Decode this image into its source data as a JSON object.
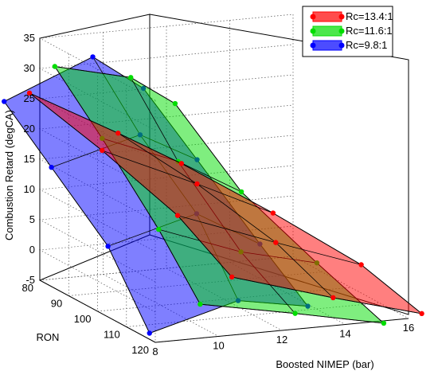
{
  "chart_data": {
    "type": "surface3d",
    "title": "",
    "zlabel": "Combustion Retard (degCA)",
    "ylabel": "RON",
    "xlabel": "Boosted NIMEP (bar)",
    "zticks": [
      "-5",
      "0",
      "5",
      "10",
      "15",
      "20",
      "25",
      "30",
      "35"
    ],
    "yticks": [
      "80",
      "90",
      "100",
      "110",
      "120"
    ],
    "xticks": [
      "8",
      "10",
      "12",
      "14",
      "16"
    ],
    "zlim": [
      -5,
      35
    ],
    "ylim": [
      80,
      120
    ],
    "xlim": [
      8,
      16
    ],
    "grid": true,
    "legend_position": "top-right",
    "series": [
      {
        "name": "Rc=13.4:1",
        "color": "#ff0000",
        "rows": [
          {
            "ron": 83,
            "nimep": [
              7.4,
              10.2,
              12.2
            ],
            "retard": [
              27,
              19,
              13
            ]
          },
          {
            "ron": 95,
            "nimep": [
              8.6,
              11.6,
              14.0
            ],
            "retard": [
              20,
              13,
              7
            ]
          },
          {
            "ron": 108,
            "nimep": [
              9.8,
              12.9,
              15.6
            ],
            "retard": [
              12,
              6,
              1
            ]
          },
          {
            "ron": 118,
            "nimep": [
              10.6,
              13.8,
              16.6
            ],
            "retard": [
              4,
              -1,
              -5
            ]
          }
        ]
      },
      {
        "name": "Rc=11.6:1",
        "color": "#00dd00",
        "rows": [
          {
            "ron": 83,
            "nimep": [
              8.2,
              10.6,
              12.0
            ],
            "retard": [
              31,
              28,
              23
            ]
          },
          {
            "ron": 95,
            "nimep": [
              8.6,
              11.0,
              13.0
            ],
            "retard": [
              22,
              17,
              11
            ]
          },
          {
            "ron": 108,
            "nimep": [
              9.2,
              11.8,
              14.2
            ],
            "retard": [
              10,
              5,
              2
            ]
          },
          {
            "ron": 118,
            "nimep": [
              9.6,
              12.6,
              15.4
            ],
            "retard": [
              0,
              -3,
              -6
            ]
          }
        ]
      },
      {
        "name": "Rc=9.8:1",
        "color": "#0000ff",
        "rows": [
          {
            "ron": 83,
            "nimep": [
              6.6,
              9.4,
              11.0
            ],
            "retard": [
              26,
              32,
              26
            ]
          },
          {
            "ron": 95,
            "nimep": [
              7.0,
              9.8,
              11.6
            ],
            "retard": [
              18,
              22,
              17
            ]
          },
          {
            "ron": 108,
            "nimep": [
              7.6,
              10.4,
              12.4
            ],
            "retard": [
              8,
              12,
              6
            ]
          },
          {
            "ron": 118,
            "nimep": [
              8.0,
              10.8,
              13.0
            ],
            "retard": [
              -4,
              0,
              -2
            ]
          }
        ]
      }
    ]
  }
}
